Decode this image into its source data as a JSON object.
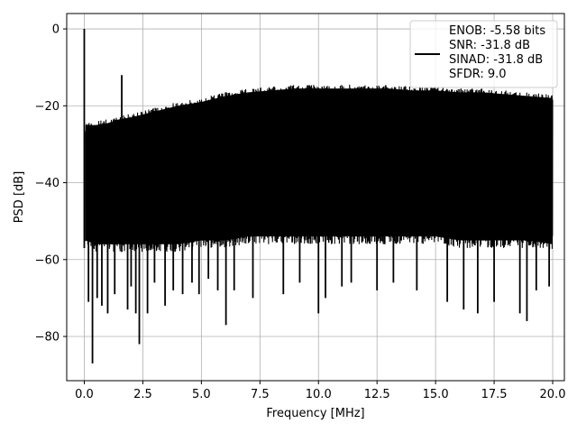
{
  "chart_data": {
    "type": "line",
    "xlabel": "Frequency [MHz]",
    "ylabel": "PSD [dB]",
    "xlim": [
      -0.75,
      20.5
    ],
    "ylim": [
      -91.5,
      4
    ],
    "x_ticks": [
      {
        "value": 0.0,
        "label": "0.0"
      },
      {
        "value": 2.5,
        "label": "2.5"
      },
      {
        "value": 5.0,
        "label": "5.0"
      },
      {
        "value": 7.5,
        "label": "7.5"
      },
      {
        "value": 10.0,
        "label": "10.0"
      },
      {
        "value": 12.5,
        "label": "12.5"
      },
      {
        "value": 15.0,
        "label": "15.0"
      },
      {
        "value": 17.5,
        "label": "17.5"
      },
      {
        "value": 20.0,
        "label": "20.0"
      }
    ],
    "y_ticks": [
      {
        "value": 0,
        "label": "0"
      },
      {
        "value": -20,
        "label": "−20"
      },
      {
        "value": -40,
        "label": "−40"
      },
      {
        "value": -60,
        "label": "−60"
      },
      {
        "value": -80,
        "label": "−80"
      }
    ],
    "grid": true,
    "legend_position": "top-right",
    "legend_lines": [
      "ENOB: -5.58 bits",
      "SNR: -31.8 dB",
      "SINAD: -31.8 dB",
      "SFDR: 9.0"
    ],
    "series_color": "#000000",
    "series": [
      {
        "envelope": {
          "x": [
            0.05,
            0.5,
            1.0,
            1.5,
            2.0,
            3.0,
            4.0,
            5.0,
            6.0,
            7.0,
            8.0,
            9.0,
            10.0,
            11.0,
            12.0,
            13.0,
            14.0,
            15.0,
            16.0,
            17.0,
            18.0,
            19.0,
            20.0
          ],
          "upper": [
            -24,
            -24,
            -23.5,
            -22.5,
            -22,
            -20.5,
            -19,
            -18,
            -16.5,
            -15.5,
            -15,
            -14.5,
            -14.5,
            -14.5,
            -14.5,
            -14.5,
            -15,
            -15,
            -15.5,
            -15.5,
            -16,
            -16.5,
            -17
          ],
          "lower": [
            -57,
            -58,
            -58,
            -58,
            -58,
            -58,
            -58,
            -57,
            -57,
            -56,
            -56,
            -56,
            -56,
            -56,
            -56,
            -56,
            -56,
            -56,
            -57,
            -57,
            -57,
            -57,
            -58
          ]
        },
        "peaks": [
          {
            "x": 0.0,
            "y": 0.0
          },
          {
            "x": 1.6,
            "y": -12.0
          }
        ],
        "dips": [
          {
            "x": 0.18,
            "y": -71
          },
          {
            "x": 0.35,
            "y": -87
          },
          {
            "x": 0.55,
            "y": -70
          },
          {
            "x": 0.75,
            "y": -72
          },
          {
            "x": 1.0,
            "y": -74
          },
          {
            "x": 1.3,
            "y": -69
          },
          {
            "x": 1.85,
            "y": -73
          },
          {
            "x": 2.0,
            "y": -67
          },
          {
            "x": 2.2,
            "y": -74
          },
          {
            "x": 2.35,
            "y": -82
          },
          {
            "x": 2.7,
            "y": -74
          },
          {
            "x": 3.0,
            "y": -66
          },
          {
            "x": 3.45,
            "y": -72
          },
          {
            "x": 3.8,
            "y": -68
          },
          {
            "x": 4.2,
            "y": -69
          },
          {
            "x": 4.6,
            "y": -66
          },
          {
            "x": 4.9,
            "y": -69
          },
          {
            "x": 5.3,
            "y": -65
          },
          {
            "x": 5.7,
            "y": -68
          },
          {
            "x": 6.05,
            "y": -77
          },
          {
            "x": 6.4,
            "y": -68
          },
          {
            "x": 7.2,
            "y": -70
          },
          {
            "x": 8.5,
            "y": -69
          },
          {
            "x": 9.2,
            "y": -66
          },
          {
            "x": 10.0,
            "y": -74
          },
          {
            "x": 10.3,
            "y": -70
          },
          {
            "x": 11.0,
            "y": -67
          },
          {
            "x": 11.4,
            "y": -66
          },
          {
            "x": 12.5,
            "y": -68
          },
          {
            "x": 13.2,
            "y": -66
          },
          {
            "x": 14.2,
            "y": -68
          },
          {
            "x": 15.5,
            "y": -71
          },
          {
            "x": 16.2,
            "y": -73
          },
          {
            "x": 16.8,
            "y": -74
          },
          {
            "x": 17.5,
            "y": -71
          },
          {
            "x": 18.6,
            "y": -74
          },
          {
            "x": 18.9,
            "y": -76
          },
          {
            "x": 19.3,
            "y": -68
          },
          {
            "x": 19.85,
            "y": -67
          }
        ]
      }
    ]
  }
}
